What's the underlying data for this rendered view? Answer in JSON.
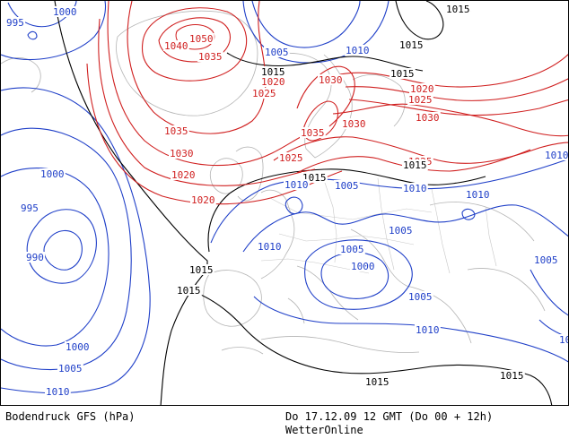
{
  "map": {
    "title_left": "Bodendruck GFS (hPa)",
    "title_right": "Do 17.12.09 12 GMT (Do 00 + 12h)",
    "source": "WetterOnline",
    "colors": {
      "low": "#1f3fc8",
      "mid": "#000000",
      "high": "#d02020",
      "coast": "#b4b4b4"
    },
    "isobar_labels": [
      {
        "text": "995",
        "group": "low"
      },
      {
        "text": "1000",
        "group": "low"
      },
      {
        "text": "1040",
        "group": "high"
      },
      {
        "text": "1050",
        "group": "high"
      },
      {
        "text": "1035",
        "group": "high"
      },
      {
        "text": "1005",
        "group": "low"
      },
      {
        "text": "1010",
        "group": "low"
      },
      {
        "text": "1015",
        "group": "mid"
      },
      {
        "text": "1015",
        "group": "mid"
      },
      {
        "text": "1015",
        "group": "mid"
      },
      {
        "text": "1015",
        "group": "mid"
      },
      {
        "text": "1020",
        "group": "high"
      },
      {
        "text": "1025",
        "group": "high"
      },
      {
        "text": "1030",
        "group": "high"
      },
      {
        "text": "1020",
        "group": "high"
      },
      {
        "text": "1025",
        "group": "high"
      },
      {
        "text": "1030",
        "group": "high"
      },
      {
        "text": "1035",
        "group": "high"
      },
      {
        "text": "1030",
        "group": "high"
      },
      {
        "text": "1035",
        "group": "high"
      },
      {
        "text": "1030",
        "group": "high"
      },
      {
        "text": "1025",
        "group": "high"
      },
      {
        "text": "1025",
        "group": "high"
      },
      {
        "text": "1020",
        "group": "high"
      },
      {
        "text": "1020",
        "group": "high"
      },
      {
        "text": "1015",
        "group": "mid"
      },
      {
        "text": "1015",
        "group": "mid"
      },
      {
        "text": "1010",
        "group": "low"
      },
      {
        "text": "1010",
        "group": "low"
      },
      {
        "text": "1005",
        "group": "low"
      },
      {
        "text": "1010",
        "group": "low"
      },
      {
        "text": "1000",
        "group": "low"
      },
      {
        "text": "995",
        "group": "low"
      },
      {
        "text": "990",
        "group": "low"
      },
      {
        "text": "1010",
        "group": "low"
      },
      {
        "text": "1005",
        "group": "low"
      },
      {
        "text": "1005",
        "group": "low"
      },
      {
        "text": "1000",
        "group": "low"
      },
      {
        "text": "1005",
        "group": "low"
      },
      {
        "text": "1005",
        "group": "low"
      },
      {
        "text": "1015",
        "group": "mid"
      },
      {
        "text": "1015",
        "group": "mid"
      },
      {
        "text": "1010",
        "group": "low"
      },
      {
        "text": "1000",
        "group": "low"
      },
      {
        "text": "1005",
        "group": "low"
      },
      {
        "text": "1010",
        "group": "low"
      },
      {
        "text": "1015",
        "group": "mid"
      },
      {
        "text": "1015",
        "group": "mid"
      },
      {
        "text": "1015",
        "group": "mid"
      },
      {
        "text": "1010",
        "group": "low"
      },
      {
        "text": "1010",
        "group": "low"
      }
    ]
  }
}
